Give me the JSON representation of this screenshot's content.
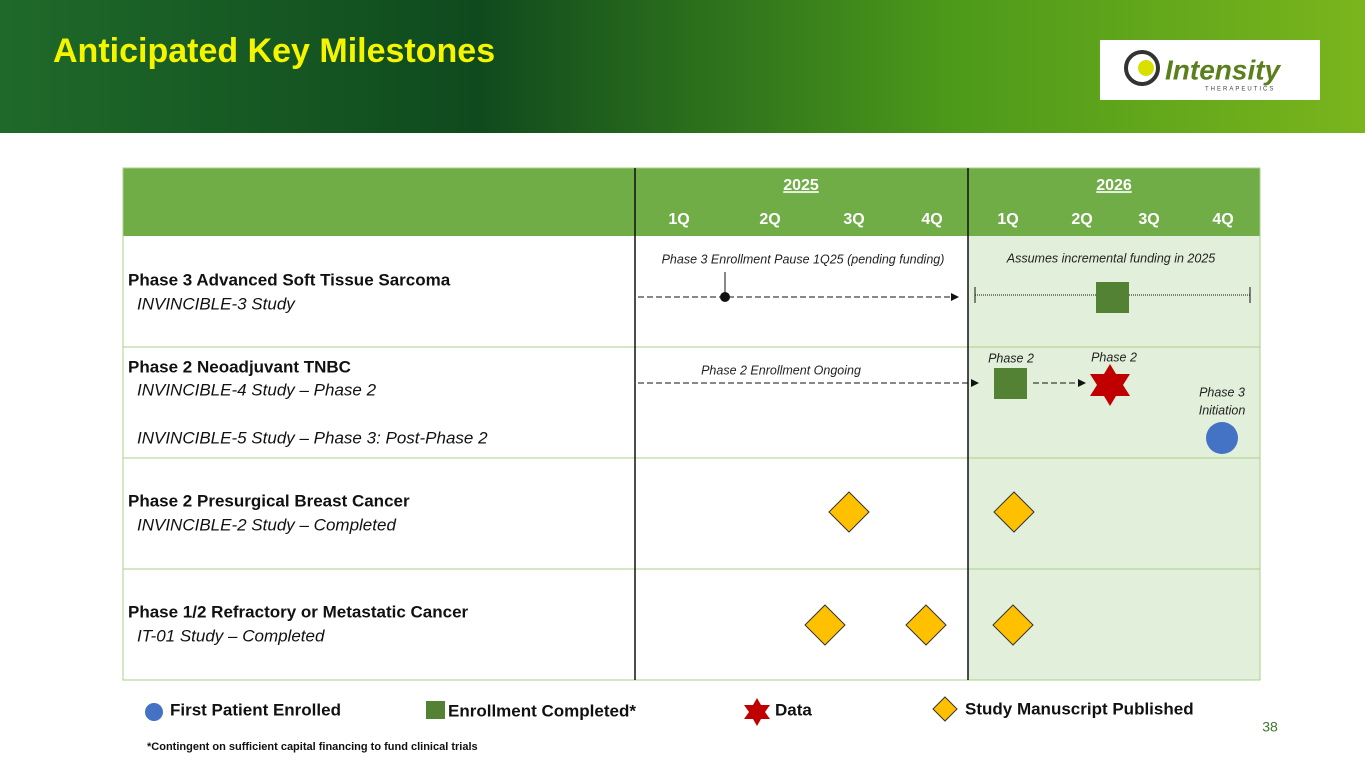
{
  "header": {
    "title": "Anticipated Key Milestones",
    "logo": {
      "name": "Intensity",
      "tagline": "THERAPEUTICS"
    }
  },
  "table": {
    "years": [
      "2025",
      "2026"
    ],
    "quarters": [
      "1Q",
      "2Q",
      "3Q",
      "4Q",
      "1Q",
      "2Q",
      "3Q",
      "4Q"
    ],
    "rows": [
      {
        "title": "Phase 3 Advanced Soft Tissue Sarcoma",
        "lines": [
          "INVINCIBLE-3 Study"
        ]
      },
      {
        "title": "Phase 2 Neoadjuvant TNBC",
        "lines": [
          "INVINCIBLE-4 Study – Phase 2",
          "INVINCIBLE-5 Study – Phase 3: Post-Phase 2"
        ]
      },
      {
        "title": "Phase 2 Presurgical Breast Cancer",
        "lines": [
          "INVINCIBLE-2 Study – Completed"
        ]
      },
      {
        "title": "Phase 1/2 Refractory or Metastatic Cancer",
        "lines": [
          "IT-01 Study – Completed"
        ]
      }
    ]
  },
  "annotations": [
    "Phase 3 Enrollment Pause 1Q25 (pending funding)",
    "Assumes incremental funding in 2025",
    "Phase 2 Enrollment Ongoing",
    "Phase 2",
    "Phase 2",
    "Phase 3",
    "Initiation"
  ],
  "legend": [
    "First Patient Enrolled",
    "Enrollment Completed*",
    "Data",
    "Study Manuscript Published"
  ],
  "footnote": "*Contingent on sufficient capital financing to fund clinical trials",
  "page_number": "38"
}
